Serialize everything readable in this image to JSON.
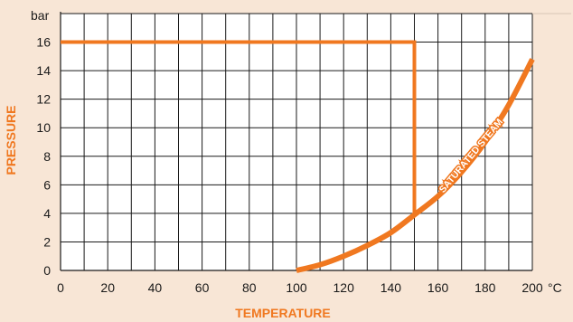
{
  "chart_data": {
    "type": "line",
    "title": "",
    "xlabel": "TEMPERATURE",
    "ylabel": "PRESSURE",
    "x_unit": "°C",
    "y_unit": "bar",
    "xlim": [
      0,
      200
    ],
    "ylim": [
      0,
      18
    ],
    "x_major_ticks": [
      0,
      20,
      40,
      60,
      80,
      100,
      120,
      140,
      160,
      180,
      200
    ],
    "y_major_ticks": [
      0,
      2,
      4,
      6,
      8,
      10,
      12,
      14,
      16
    ],
    "x_grid_step": 10,
    "y_grid_step": 2,
    "grid": true,
    "background_color": "#f8e6d6",
    "plot_background": "#ffffff",
    "line_color": "#f07820",
    "label_color": "#f07820",
    "series": [
      {
        "name": "",
        "kind": "operating-limit",
        "points": [
          [
            0,
            16
          ],
          [
            150,
            16
          ],
          [
            150,
            3.9
          ]
        ]
      },
      {
        "name": "SATURATED STEAM",
        "kind": "curve",
        "points": [
          [
            100,
            0
          ],
          [
            110,
            0.4
          ],
          [
            120,
            1.0
          ],
          [
            130,
            1.75
          ],
          [
            140,
            2.65
          ],
          [
            150,
            3.9
          ],
          [
            160,
            5.2
          ],
          [
            170,
            6.9
          ],
          [
            180,
            9.0
          ],
          [
            190,
            11.6
          ],
          [
            200,
            14.8
          ]
        ]
      }
    ],
    "annotations": [
      {
        "text": "SATURATED STEAM",
        "x": 175,
        "y": 7.9
      }
    ]
  }
}
